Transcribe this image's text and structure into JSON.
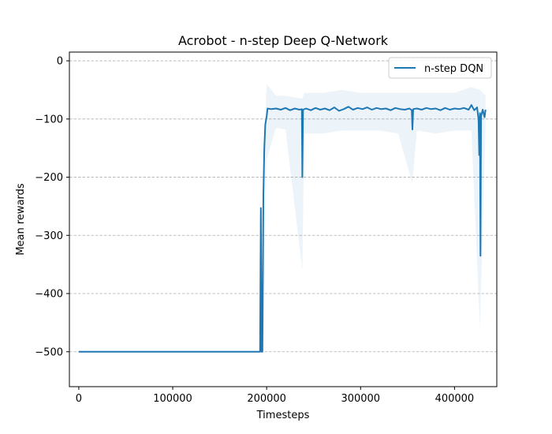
{
  "chart_data": {
    "type": "line",
    "title": "Acrobot - n-step Deep Q-Network",
    "xlabel": "Timesteps",
    "ylabel": "Mean rewards",
    "xlim": [
      -10000,
      445000
    ],
    "ylim": [
      -560,
      15
    ],
    "xticks": [
      0,
      100000,
      200000,
      300000,
      400000
    ],
    "xtick_labels": [
      "0",
      "100000",
      "200000",
      "300000",
      "400000"
    ],
    "yticks": [
      0,
      -100,
      -200,
      -300,
      -400,
      -500
    ],
    "ytick_labels": [
      "0",
      "−100",
      "−200",
      "−300",
      "−400",
      "−500"
    ],
    "grid": "horizontal dashed",
    "legend": "top-right",
    "colors": {
      "line": "#1f77b4",
      "band": "#1f77b4",
      "grid": "#b0b0b0"
    },
    "series": [
      {
        "name": "n-step DQN",
        "points": [
          [
            0,
            -500
          ],
          [
            50000,
            -500
          ],
          [
            100000,
            -500
          ],
          [
            150000,
            -500
          ],
          [
            192000,
            -500
          ],
          [
            193000,
            -500
          ],
          [
            193800,
            -253
          ],
          [
            194600,
            -500
          ],
          [
            195500,
            -500
          ],
          [
            196500,
            -230
          ],
          [
            197500,
            -150
          ],
          [
            198500,
            -110
          ],
          [
            200000,
            -95
          ],
          [
            201000,
            -82
          ],
          [
            205000,
            -83
          ],
          [
            210000,
            -82
          ],
          [
            215000,
            -84
          ],
          [
            220000,
            -81
          ],
          [
            225000,
            -85
          ],
          [
            230000,
            -82
          ],
          [
            235000,
            -84
          ],
          [
            237500,
            -83
          ],
          [
            238000,
            -200
          ],
          [
            238700,
            -84
          ],
          [
            242000,
            -82
          ],
          [
            247000,
            -85
          ],
          [
            252000,
            -81
          ],
          [
            257000,
            -84
          ],
          [
            262000,
            -82
          ],
          [
            267000,
            -85
          ],
          [
            272000,
            -80
          ],
          [
            277000,
            -86
          ],
          [
            282000,
            -83
          ],
          [
            287000,
            -79
          ],
          [
            292000,
            -84
          ],
          [
            297000,
            -81
          ],
          [
            302000,
            -83
          ],
          [
            307000,
            -80
          ],
          [
            312000,
            -84
          ],
          [
            317000,
            -81
          ],
          [
            322000,
            -83
          ],
          [
            327000,
            -82
          ],
          [
            332000,
            -85
          ],
          [
            337000,
            -81
          ],
          [
            342000,
            -83
          ],
          [
            347000,
            -84
          ],
          [
            352000,
            -82
          ],
          [
            354500,
            -85
          ],
          [
            355200,
            -118
          ],
          [
            356000,
            -83
          ],
          [
            360000,
            -82
          ],
          [
            365000,
            -84
          ],
          [
            370000,
            -81
          ],
          [
            375000,
            -83
          ],
          [
            380000,
            -82
          ],
          [
            385000,
            -85
          ],
          [
            390000,
            -81
          ],
          [
            395000,
            -84
          ],
          [
            400000,
            -82
          ],
          [
            405000,
            -83
          ],
          [
            410000,
            -81
          ],
          [
            415000,
            -84
          ],
          [
            418000,
            -76
          ],
          [
            421000,
            -85
          ],
          [
            424000,
            -80
          ],
          [
            425500,
            -100
          ],
          [
            426300,
            -162
          ],
          [
            427000,
            -90
          ],
          [
            427600,
            -335
          ],
          [
            428300,
            -95
          ],
          [
            430000,
            -84
          ],
          [
            432000,
            -97
          ],
          [
            433000,
            -84
          ]
        ],
        "band": [
          [
            197000,
            -150,
            -480
          ],
          [
            200000,
            -40,
            -170
          ],
          [
            210000,
            -60,
            -115
          ],
          [
            220000,
            -60,
            -118
          ],
          [
            238000,
            -65,
            -360
          ],
          [
            240000,
            -55,
            -125
          ],
          [
            260000,
            -55,
            -125
          ],
          [
            280000,
            -50,
            -120
          ],
          [
            300000,
            -55,
            -120
          ],
          [
            320000,
            -55,
            -120
          ],
          [
            340000,
            -55,
            -125
          ],
          [
            355000,
            -55,
            -210
          ],
          [
            360000,
            -55,
            -120
          ],
          [
            380000,
            -55,
            -125
          ],
          [
            400000,
            -55,
            -120
          ],
          [
            418000,
            -45,
            -120
          ],
          [
            427000,
            -50,
            -460
          ],
          [
            433000,
            -60,
            -120
          ]
        ]
      }
    ]
  }
}
